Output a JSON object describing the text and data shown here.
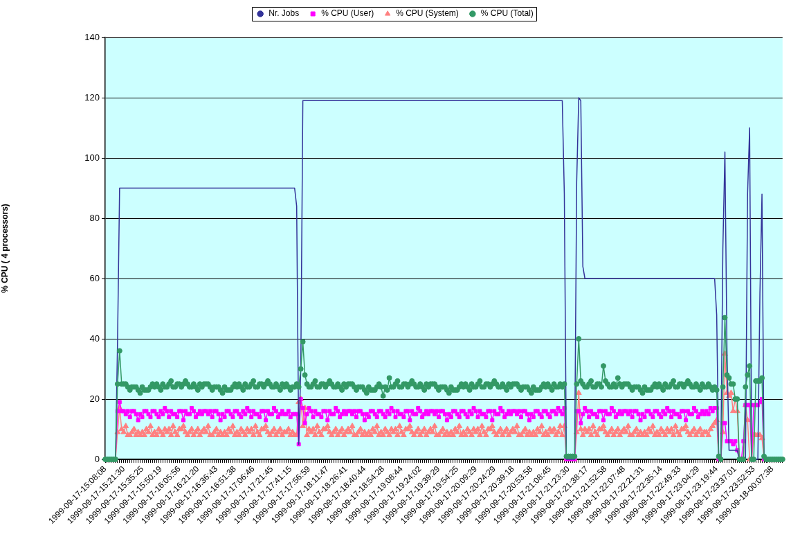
{
  "chart_data": {
    "type": "line",
    "ylabel": "% CPU ( 4 processors)",
    "ylim": [
      0,
      140
    ],
    "yticks": [
      0,
      20,
      40,
      60,
      80,
      100,
      120,
      140
    ],
    "grid": "y",
    "legend": "top",
    "categories": [
      "1999-09-17-15:08:08",
      null,
      null,
      null,
      null,
      null,
      null,
      null,
      null,
      "1999-09-17-15:21:30",
      null,
      null,
      null,
      null,
      null,
      null,
      null,
      null,
      "1999-09-17-15:35:25",
      null,
      null,
      null,
      null,
      null,
      null,
      null,
      null,
      "1999-09-17-15:50:19",
      null,
      null,
      null,
      null,
      null,
      null,
      null,
      null,
      "1999-09-17-16:05:56",
      null,
      null,
      null,
      null,
      null,
      null,
      null,
      null,
      "1999-09-17-16:21:20",
      null,
      null,
      null,
      null,
      null,
      null,
      null,
      null,
      "1999-09-17-16:36:43",
      null,
      null,
      null,
      null,
      null,
      null,
      null,
      null,
      "1999-09-17-16:51:38",
      null,
      null,
      null,
      null,
      null,
      null,
      null,
      null,
      "1999-09-17-17:06:46",
      null,
      null,
      null,
      null,
      null,
      null,
      null,
      null,
      "1999-09-17-17:21:45",
      null,
      null,
      null,
      null,
      null,
      null,
      null,
      null,
      "1999-09-17-17:41:15",
      null,
      null,
      null,
      null,
      null,
      null,
      null,
      null,
      "1999-09-17-17:56:59",
      null,
      null,
      null,
      null,
      null,
      null,
      null,
      null,
      "1999-09-17-18:11:47",
      null,
      null,
      null,
      null,
      null,
      null,
      null,
      null,
      "1999-09-17-18:26:41",
      null,
      null,
      null,
      null,
      null,
      null,
      null,
      null,
      "1999-09-17-18:40:44",
      null,
      null,
      null,
      null,
      null,
      null,
      null,
      null,
      "1999-09-17-18:54:28",
      null,
      null,
      null,
      null,
      null,
      null,
      null,
      null,
      "1999-09-17-19:08:44",
      null,
      null,
      null,
      null,
      null,
      null,
      null,
      null,
      "1999-09-17-19:24:02",
      null,
      null,
      null,
      null,
      null,
      null,
      null,
      null,
      "1999-09-17-19:39:29",
      null,
      null,
      null,
      null,
      null,
      null,
      null,
      null,
      "1999-09-17-19:54:25",
      null,
      null,
      null,
      null,
      null,
      null,
      null,
      null,
      "1999-09-17-20:09:29",
      null,
      null,
      null,
      null,
      null,
      null,
      null,
      null,
      "1999-09-17-20:24:29",
      null,
      null,
      null,
      null,
      null,
      null,
      null,
      null,
      "1999-09-17-20:39:18",
      null,
      null,
      null,
      null,
      null,
      null,
      null,
      null,
      "1999-09-17-20:53:58",
      null,
      null,
      null,
      null,
      null,
      null,
      null,
      null,
      "1999-09-17-21:08:45",
      null,
      null,
      null,
      null,
      null,
      null,
      null,
      null,
      "1999-09-17-21:23:30",
      null,
      null,
      null,
      null,
      null,
      null,
      null,
      null,
      "1999-09-17-21:38:17",
      null,
      null,
      null,
      null,
      null,
      null,
      null,
      null,
      "1999-09-17-21:52:58",
      null,
      null,
      null,
      null,
      null,
      null,
      null,
      null,
      "1999-09-17-22:07:48",
      null,
      null,
      null,
      null,
      null,
      null,
      null,
      null,
      "1999-09-17-22:21:31",
      null,
      null,
      null,
      null,
      null,
      null,
      null,
      null,
      "1999-09-17-22:35:14",
      null,
      null,
      null,
      null,
      null,
      null,
      null,
      null,
      "1999-09-17-22:49:33",
      null,
      null,
      null,
      null,
      null,
      null,
      null,
      null,
      "1999-09-17-23:04:29",
      null,
      null,
      null,
      null,
      null,
      null,
      null,
      null,
      "1999-09-17-23:19:44",
      null,
      null,
      null,
      null,
      null,
      null,
      null,
      null,
      "1999-09-17-23:37:01",
      null,
      null,
      null,
      null,
      null,
      null,
      null,
      null,
      "1999-09-17-23:52:53",
      null,
      null,
      null,
      null,
      null,
      null,
      null,
      null,
      "1999-09-18-00:07:38",
      null,
      null,
      null,
      null,
      null
    ],
    "series": [
      {
        "name": "Nr. Jobs",
        "color": "#333399",
        "marker": "none",
        "values": [
          null,
          null,
          null,
          null,
          null,
          0,
          39,
          90,
          90,
          90,
          90,
          90,
          90,
          90,
          90,
          90,
          90,
          90,
          90,
          90,
          90,
          90,
          90,
          90,
          90,
          90,
          90,
          90,
          90,
          90,
          90,
          90,
          90,
          90,
          90,
          90,
          90,
          90,
          90,
          90,
          90,
          90,
          90,
          90,
          90,
          90,
          90,
          90,
          90,
          90,
          90,
          90,
          90,
          90,
          90,
          90,
          90,
          90,
          90,
          90,
          90,
          90,
          90,
          90,
          90,
          90,
          90,
          90,
          90,
          90,
          90,
          90,
          90,
          90,
          90,
          90,
          90,
          90,
          90,
          90,
          90,
          90,
          90,
          90,
          90,
          90,
          90,
          90,
          90,
          90,
          90,
          90,
          90,
          84,
          5,
          30,
          119,
          119,
          119,
          119,
          119,
          119,
          119,
          119,
          119,
          119,
          119,
          119,
          119,
          119,
          119,
          119,
          119,
          119,
          119,
          119,
          119,
          119,
          119,
          119,
          119,
          119,
          119,
          119,
          119,
          119,
          119,
          119,
          119,
          119,
          119,
          119,
          119,
          119,
          119,
          119,
          119,
          119,
          119,
          119,
          119,
          119,
          119,
          119,
          119,
          119,
          119,
          119,
          119,
          119,
          119,
          119,
          119,
          119,
          119,
          119,
          119,
          119,
          119,
          119,
          119,
          119,
          119,
          119,
          119,
          119,
          119,
          119,
          119,
          119,
          119,
          119,
          119,
          119,
          119,
          119,
          119,
          119,
          119,
          119,
          119,
          119,
          119,
          119,
          119,
          119,
          119,
          119,
          119,
          119,
          119,
          119,
          119,
          119,
          119,
          119,
          119,
          119,
          119,
          119,
          119,
          119,
          119,
          119,
          119,
          119,
          119,
          119,
          119,
          119,
          119,
          119,
          119,
          119,
          119,
          119,
          119,
          119,
          119,
          119,
          119,
          119,
          119,
          88,
          0,
          0,
          0,
          0,
          0,
          92,
          120,
          119,
          64,
          60,
          60,
          60,
          60,
          60,
          60,
          60,
          60,
          60,
          60,
          60,
          60,
          60,
          60,
          60,
          60,
          60,
          60,
          60,
          60,
          60,
          60,
          60,
          60,
          60,
          60,
          60,
          60,
          60,
          60,
          60,
          60,
          60,
          60,
          60,
          60,
          60,
          60,
          60,
          60,
          60,
          60,
          60,
          60,
          60,
          60,
          60,
          60,
          60,
          60,
          60,
          60,
          60,
          60,
          60,
          60,
          60,
          60,
          60,
          60,
          60,
          60,
          60,
          60,
          48,
          0,
          0,
          70,
          102,
          36,
          3,
          3,
          3,
          3,
          3,
          0,
          0,
          0,
          0,
          88,
          110,
          0,
          0,
          0,
          0,
          55,
          88,
          0,
          0,
          null,
          null,
          null,
          null,
          null,
          null,
          null,
          null
        ]
      },
      {
        "name": "% CPU (User)",
        "color": "#ff00ff",
        "marker": "square",
        "values": [
          null,
          null,
          null,
          null,
          null,
          0,
          16,
          19,
          16,
          16,
          15,
          16,
          14,
          16,
          16,
          15,
          13,
          15,
          14,
          16,
          16,
          15,
          14,
          16,
          16,
          15,
          14,
          16,
          15,
          17,
          16,
          14,
          16,
          15,
          15,
          14,
          16,
          16,
          13,
          16,
          15,
          15,
          17,
          16,
          14,
          15,
          16,
          15,
          16,
          16,
          15,
          16,
          14,
          16,
          16,
          15,
          13,
          15,
          14,
          16,
          16,
          15,
          14,
          16,
          16,
          15,
          14,
          16,
          15,
          17,
          16,
          14,
          16,
          15,
          15,
          14,
          16,
          16,
          13,
          16,
          15,
          15,
          17,
          16,
          14,
          15,
          16,
          15,
          15,
          16,
          14,
          15,
          15,
          15,
          5,
          20,
          17,
          12,
          15,
          17,
          16,
          14,
          16,
          15,
          15,
          14,
          16,
          16,
          13,
          16,
          15,
          15,
          17,
          16,
          14,
          15,
          16,
          15,
          16,
          16,
          15,
          16,
          14,
          16,
          16,
          15,
          13,
          15,
          14,
          16,
          16,
          15,
          14,
          16,
          16,
          15,
          14,
          16,
          15,
          17,
          16,
          14,
          16,
          15,
          15,
          14,
          16,
          16,
          13,
          16,
          15,
          15,
          17,
          16,
          14,
          15,
          16,
          15,
          16,
          16,
          15,
          16,
          14,
          16,
          16,
          15,
          13,
          15,
          14,
          16,
          16,
          15,
          14,
          16,
          16,
          15,
          14,
          16,
          15,
          17,
          16,
          14,
          16,
          15,
          15,
          14,
          16,
          16,
          13,
          16,
          15,
          15,
          17,
          16,
          14,
          15,
          16,
          15,
          16,
          16,
          15,
          16,
          14,
          16,
          16,
          15,
          13,
          15,
          14,
          16,
          16,
          15,
          14,
          16,
          16,
          15,
          14,
          16,
          16,
          15,
          17,
          16,
          15,
          17,
          0,
          0,
          0,
          0,
          0,
          16,
          16,
          12,
          15,
          17,
          16,
          14,
          16,
          15,
          15,
          14,
          16,
          16,
          13,
          16,
          15,
          15,
          17,
          16,
          14,
          15,
          16,
          15,
          16,
          16,
          15,
          16,
          14,
          16,
          16,
          15,
          13,
          15,
          14,
          16,
          16,
          15,
          14,
          16,
          16,
          15,
          14,
          16,
          15,
          17,
          16,
          14,
          16,
          15,
          15,
          14,
          16,
          16,
          13,
          16,
          15,
          15,
          17,
          16,
          14,
          15,
          16,
          15,
          16,
          15,
          17,
          16,
          17,
          17,
          0,
          0,
          12,
          12,
          6,
          6,
          6,
          5,
          6,
          3,
          0,
          0,
          6,
          18,
          18,
          18,
          0,
          18,
          18,
          18,
          19,
          20,
          0,
          0,
          null,
          null,
          null,
          null,
          null,
          null,
          null,
          null
        ]
      },
      {
        "name": "% CPU (System)",
        "color": "#ff8080",
        "marker": "triangle",
        "values": [
          null,
          null,
          null,
          null,
          null,
          0,
          9,
          17,
          10,
          9,
          11,
          8,
          8,
          9,
          10,
          8,
          9,
          8,
          9,
          8,
          10,
          9,
          11,
          8,
          9,
          8,
          10,
          9,
          8,
          10,
          9,
          10,
          8,
          11,
          9,
          8,
          10,
          10,
          11,
          9,
          8,
          9,
          10,
          8,
          9,
          10,
          8,
          9,
          10,
          9,
          11,
          8,
          8,
          9,
          10,
          8,
          9,
          8,
          9,
          8,
          10,
          9,
          11,
          8,
          9,
          8,
          10,
          9,
          8,
          10,
          9,
          10,
          8,
          11,
          9,
          8,
          10,
          10,
          11,
          9,
          8,
          9,
          10,
          8,
          9,
          10,
          8,
          9,
          9,
          10,
          8,
          9,
          8,
          8,
          19,
          20,
          11,
          17,
          8,
          10,
          9,
          10,
          8,
          11,
          9,
          8,
          10,
          10,
          11,
          9,
          8,
          9,
          10,
          8,
          9,
          10,
          8,
          9,
          10,
          9,
          11,
          8,
          8,
          9,
          10,
          8,
          9,
          8,
          9,
          8,
          10,
          9,
          11,
          8,
          9,
          8,
          10,
          9,
          8,
          10,
          9,
          10,
          8,
          11,
          9,
          8,
          10,
          10,
          11,
          9,
          8,
          9,
          10,
          8,
          9,
          10,
          8,
          9,
          10,
          9,
          11,
          8,
          8,
          9,
          10,
          8,
          9,
          8,
          9,
          8,
          10,
          9,
          11,
          8,
          9,
          8,
          10,
          9,
          8,
          10,
          9,
          10,
          8,
          11,
          9,
          8,
          10,
          10,
          11,
          9,
          8,
          9,
          10,
          8,
          9,
          10,
          8,
          9,
          10,
          9,
          11,
          8,
          8,
          9,
          10,
          8,
          9,
          8,
          9,
          8,
          10,
          9,
          11,
          8,
          9,
          8,
          10,
          9,
          10,
          8,
          9,
          11,
          8,
          11,
          0,
          0,
          0,
          0,
          0,
          9,
          22,
          10,
          8,
          10,
          9,
          10,
          8,
          11,
          9,
          8,
          10,
          10,
          11,
          9,
          8,
          9,
          10,
          8,
          9,
          10,
          8,
          9,
          10,
          9,
          11,
          8,
          8,
          9,
          10,
          8,
          9,
          8,
          9,
          8,
          10,
          9,
          11,
          8,
          9,
          8,
          10,
          9,
          8,
          10,
          9,
          10,
          8,
          11,
          9,
          8,
          10,
          10,
          11,
          9,
          8,
          9,
          10,
          8,
          9,
          10,
          8,
          9,
          9,
          8,
          10,
          11,
          12,
          13,
          0,
          0,
          9,
          35,
          22,
          21,
          22,
          16,
          20,
          16,
          0,
          0,
          0,
          18,
          13,
          0,
          0,
          8,
          8,
          8,
          8,
          7,
          0,
          0,
          null,
          null,
          null,
          null,
          null,
          null,
          null,
          null
        ]
      },
      {
        "name": "% CPU (Total)",
        "color": "#339966",
        "marker": "circle",
        "values": [
          0,
          0,
          0,
          0,
          0,
          0,
          25,
          36,
          25,
          25,
          25,
          24,
          23,
          24,
          24,
          24,
          23,
          22,
          24,
          23,
          23,
          23,
          24,
          25,
          24,
          25,
          24,
          23,
          25,
          24,
          24,
          25,
          26,
          24,
          24,
          25,
          25,
          24,
          25,
          26,
          25,
          24,
          24,
          25,
          24,
          23,
          25,
          24,
          25,
          25,
          25,
          24,
          23,
          24,
          24,
          24,
          23,
          22,
          24,
          23,
          23,
          23,
          24,
          25,
          24,
          25,
          24,
          23,
          25,
          24,
          24,
          25,
          26,
          24,
          24,
          25,
          25,
          24,
          25,
          26,
          25,
          24,
          24,
          25,
          24,
          23,
          25,
          24,
          25,
          24,
          23,
          24,
          24,
          25,
          24,
          30,
          39,
          28,
          25,
          24,
          24,
          25,
          26,
          24,
          24,
          25,
          25,
          24,
          25,
          26,
          25,
          24,
          24,
          25,
          24,
          23,
          25,
          24,
          25,
          25,
          25,
          24,
          23,
          24,
          24,
          24,
          23,
          22,
          24,
          23,
          23,
          23,
          24,
          25,
          24,
          21,
          24,
          23,
          27,
          24,
          24,
          25,
          26,
          24,
          24,
          25,
          25,
          24,
          25,
          26,
          25,
          24,
          24,
          25,
          24,
          23,
          25,
          24,
          25,
          25,
          25,
          24,
          23,
          24,
          24,
          24,
          23,
          22,
          24,
          23,
          23,
          23,
          24,
          25,
          24,
          25,
          24,
          23,
          25,
          24,
          24,
          25,
          26,
          24,
          24,
          25,
          25,
          24,
          25,
          26,
          25,
          24,
          24,
          25,
          24,
          23,
          25,
          24,
          25,
          25,
          25,
          24,
          23,
          24,
          24,
          24,
          23,
          22,
          24,
          23,
          23,
          23,
          24,
          25,
          24,
          25,
          24,
          23,
          25,
          24,
          24,
          25,
          24,
          25,
          1,
          1,
          1,
          1,
          1,
          25,
          40,
          26,
          25,
          24,
          24,
          25,
          26,
          24,
          24,
          25,
          25,
          24,
          31,
          26,
          25,
          24,
          24,
          25,
          24,
          27,
          25,
          24,
          25,
          25,
          25,
          24,
          23,
          24,
          24,
          24,
          23,
          22,
          24,
          23,
          23,
          23,
          24,
          25,
          24,
          25,
          24,
          23,
          25,
          24,
          24,
          25,
          26,
          24,
          24,
          25,
          25,
          24,
          25,
          26,
          25,
          24,
          24,
          25,
          24,
          23,
          25,
          24,
          24,
          25,
          24,
          23,
          24,
          23,
          1,
          0,
          24,
          47,
          28,
          27,
          25,
          25,
          20,
          20,
          0,
          0,
          0,
          24,
          28,
          31,
          0,
          0,
          26,
          26,
          26,
          27,
          1,
          0,
          0,
          0,
          0,
          0,
          0,
          0,
          0,
          0
        ]
      }
    ]
  }
}
